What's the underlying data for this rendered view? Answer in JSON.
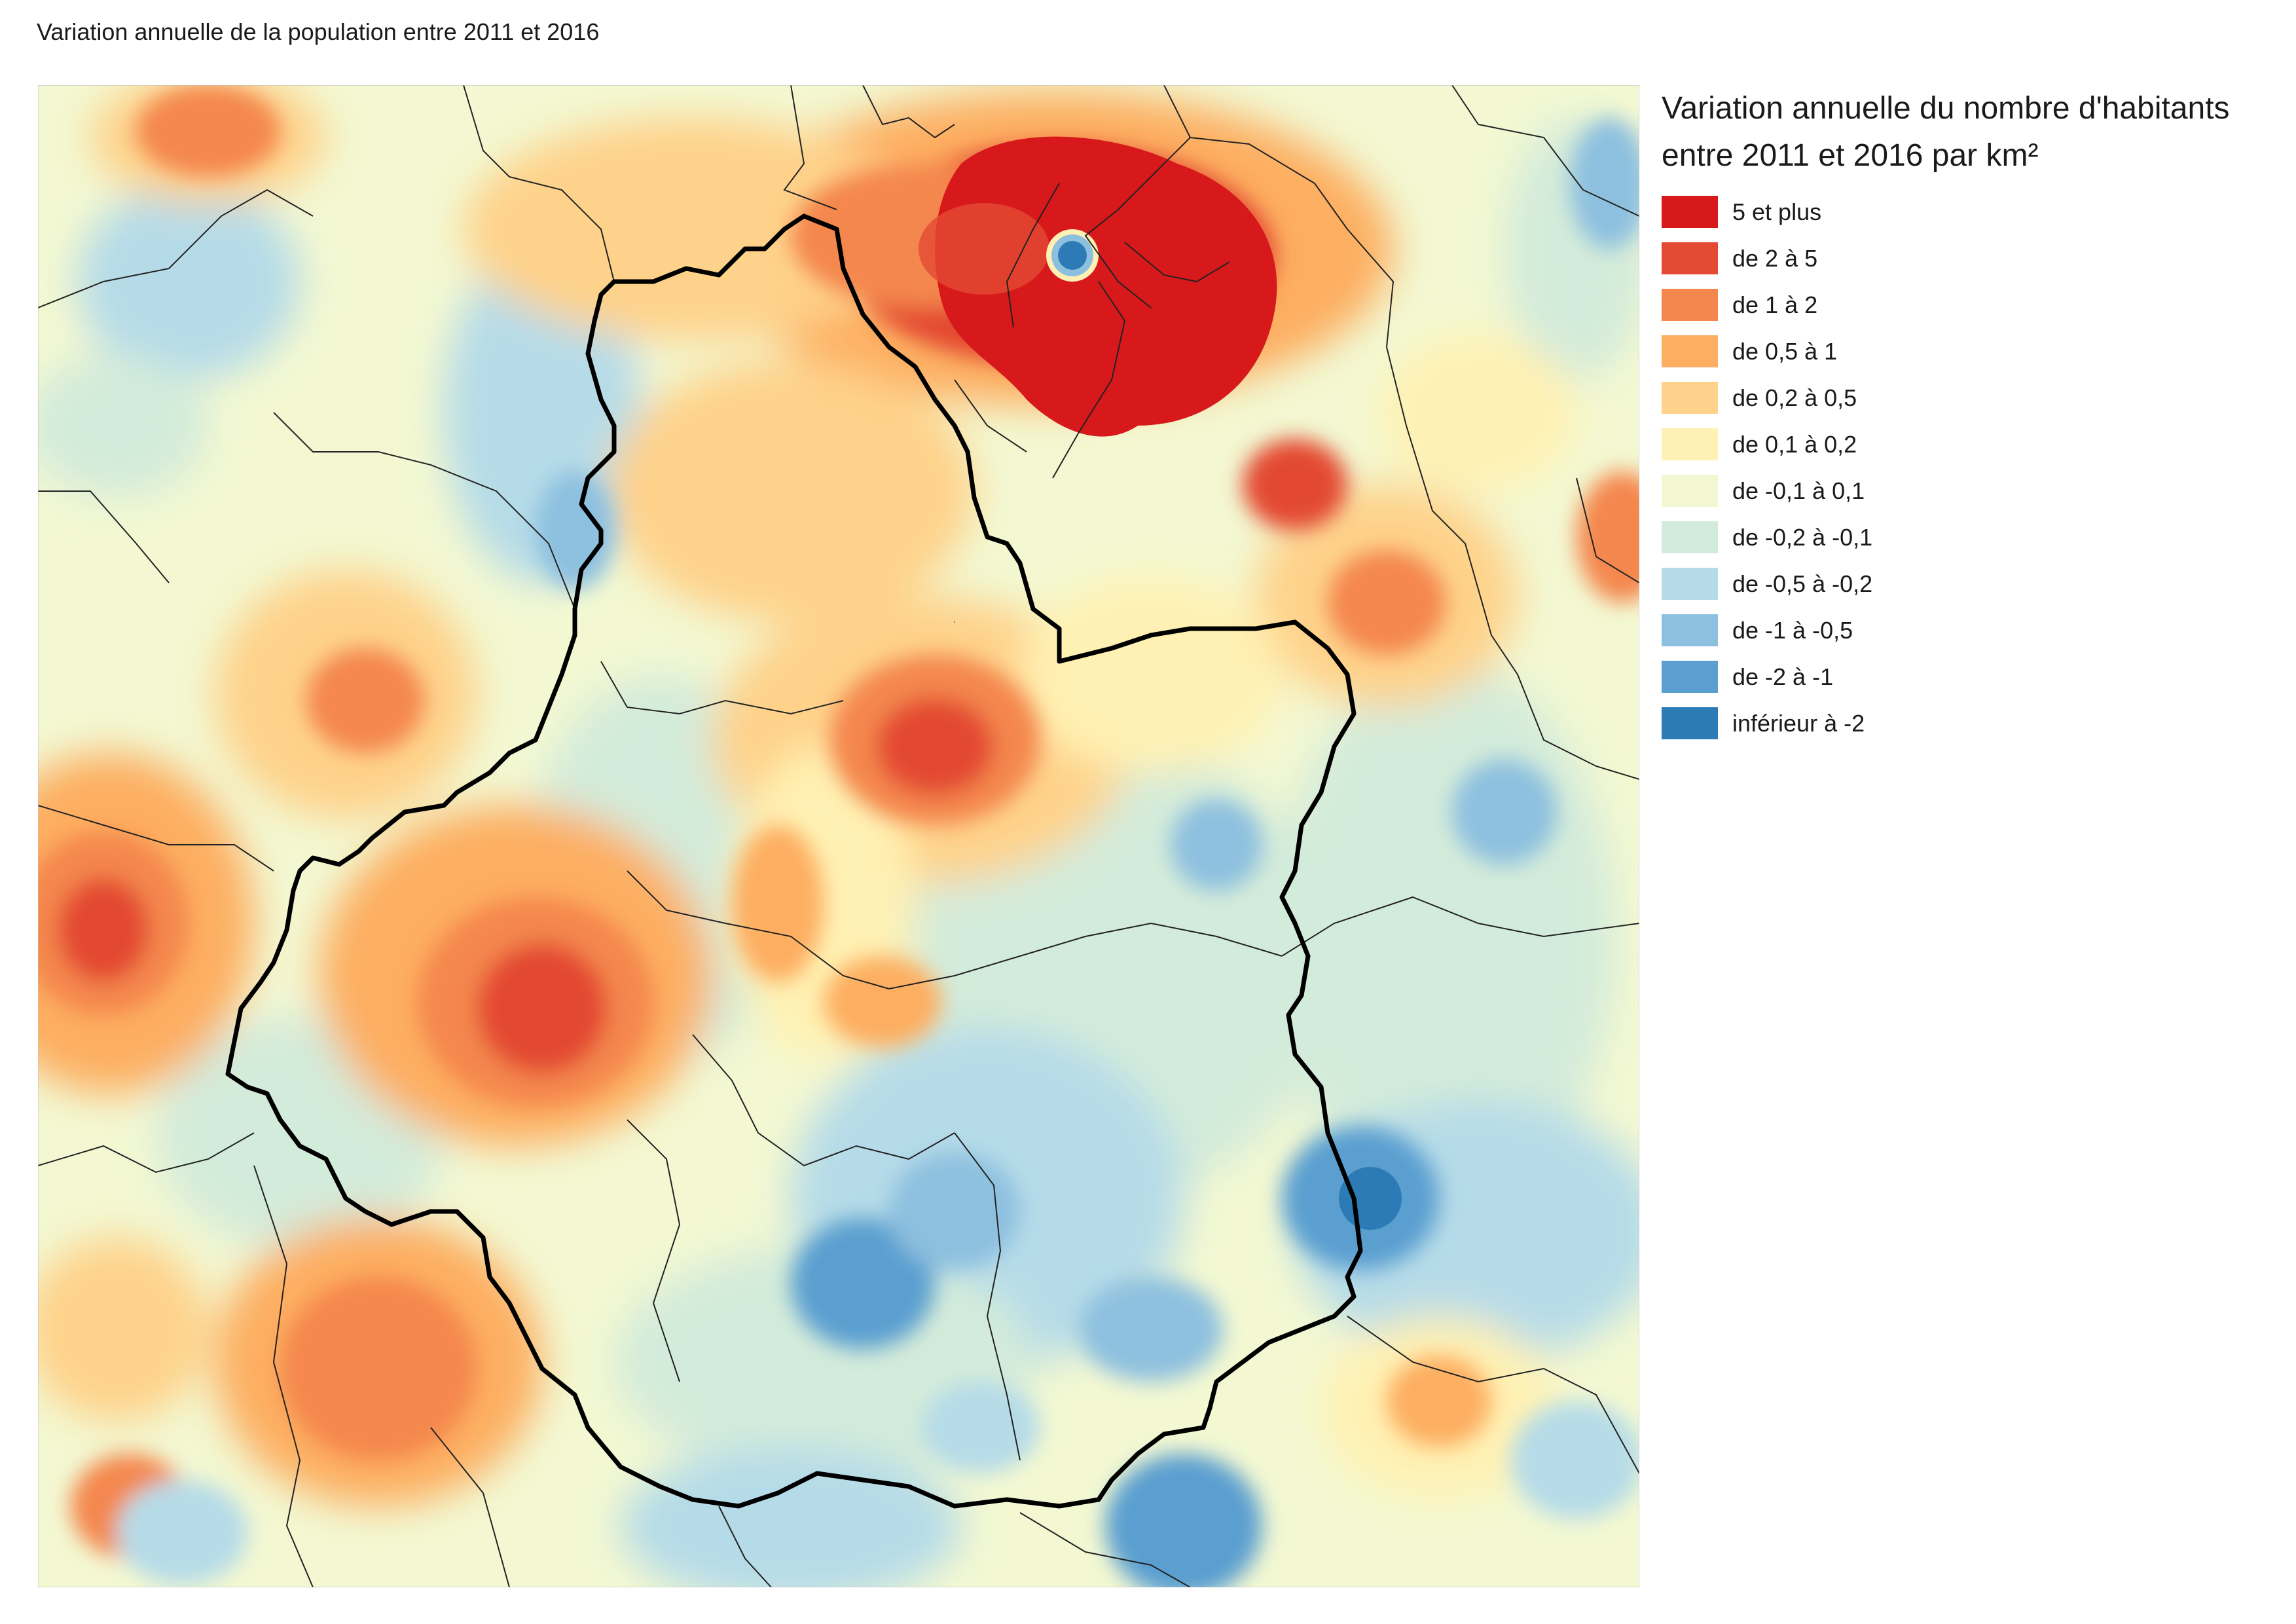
{
  "title": "Variation annuelle de la population entre 2011 et 2016",
  "legend": {
    "title_line1": "Variation annuelle du nombre d'habitants",
    "title_line2": "entre 2011 et 2016 par km²",
    "classes": [
      {
        "label": "5 et plus",
        "color": "#d7191c"
      },
      {
        "label": "de 2 à 5",
        "color": "#e34a33"
      },
      {
        "label": "de 1 à 2",
        "color": "#f4874e"
      },
      {
        "label": "de 0,5 à 1",
        "color": "#fdae61"
      },
      {
        "label": "de 0,2 à 0,5",
        "color": "#fed28a"
      },
      {
        "label": "de 0,1 à 0,2",
        "color": "#fff1b3"
      },
      {
        "label": "de -0,1 à 0,1",
        "color": "#f3f8d2"
      },
      {
        "label": "de -0,2 à -0,1",
        "color": "#d3ebda"
      },
      {
        "label": "de -0,5 à -0,2",
        "color": "#b5dbe8"
      },
      {
        "label": "de -1 à -0,5",
        "color": "#8dc0df"
      },
      {
        "label": "de -2 à -1",
        "color": "#5a9fd0"
      },
      {
        "label": "inférieur à -2",
        "color": "#2c7bb6"
      }
    ]
  }
}
